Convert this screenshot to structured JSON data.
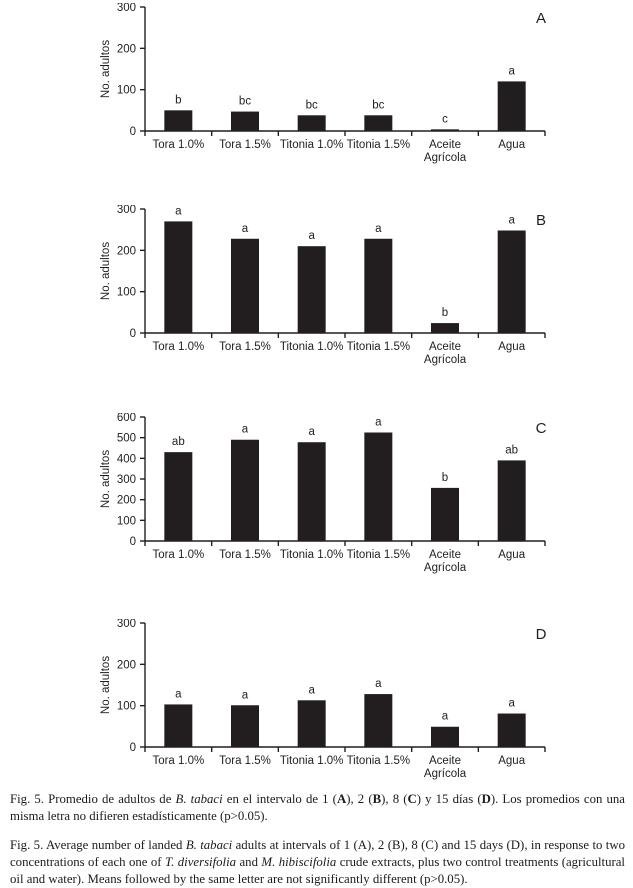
{
  "colors": {
    "ink": "#221e1f",
    "bar": "#221e1f",
    "background": "#ffffff"
  },
  "chart_data": [
    {
      "type": "bar",
      "panel": "A",
      "title": "",
      "xlabel": "",
      "ylabel": "No. adultos",
      "ylim": [
        0,
        300
      ],
      "yticks": [
        0,
        100,
        200,
        300
      ],
      "grid": false,
      "legend": "none",
      "categories": [
        "Tora 1.0%",
        "Tora 1.5%",
        "Titonia 1.0%",
        "Titonia 1.5%",
        "Aceite\nAgrícola",
        "Agua"
      ],
      "values": [
        50,
        47,
        38,
        38,
        4,
        120
      ],
      "sig_letters": [
        "b",
        "bc",
        "bc",
        "bc",
        "c",
        "a"
      ]
    },
    {
      "type": "bar",
      "panel": "B",
      "title": "",
      "xlabel": "",
      "ylabel": "No. adultos",
      "ylim": [
        0,
        300
      ],
      "yticks": [
        0,
        100,
        200,
        300
      ],
      "grid": false,
      "legend": "none",
      "categories": [
        "Tora 1.0%",
        "Tora 1.5%",
        "Titonia 1.0%",
        "Titonia 1.5%",
        "Aceite\nAgrícola",
        "Agua"
      ],
      "values": [
        270,
        228,
        210,
        228,
        24,
        248
      ],
      "sig_letters": [
        "a",
        "a",
        "a",
        "a",
        "b",
        "a"
      ]
    },
    {
      "type": "bar",
      "panel": "C",
      "title": "",
      "xlabel": "",
      "ylabel": "No. adultos",
      "ylim": [
        0,
        600
      ],
      "yticks": [
        0,
        100,
        200,
        300,
        400,
        500,
        600
      ],
      "grid": false,
      "legend": "none",
      "categories": [
        "Tora 1.0%",
        "Tora 1.5%",
        "Titonia 1.0%",
        "Titonia 1.5%",
        "Aceite\nAgrícola",
        "Agua"
      ],
      "values": [
        430,
        490,
        478,
        525,
        257,
        390
      ],
      "sig_letters": [
        "ab",
        "a",
        "a",
        "a",
        "b",
        "ab"
      ]
    },
    {
      "type": "bar",
      "panel": "D",
      "title": "",
      "xlabel": "",
      "ylabel": "No. adultos",
      "ylim": [
        0,
        300
      ],
      "yticks": [
        0,
        100,
        200,
        300
      ],
      "grid": false,
      "legend": "none",
      "categories": [
        "Tora 1.0%",
        "Tora 1.5%",
        "Titonia 1.0%",
        "Titonia 1.5%",
        "Aceite\nAgrícola",
        "Agua"
      ],
      "values": [
        103,
        101,
        113,
        128,
        49,
        81
      ],
      "sig_letters": [
        "a",
        "a",
        "a",
        "a",
        "a",
        "a"
      ]
    }
  ],
  "captions": {
    "spanish": {
      "segments": [
        {
          "t": "Fig. 5. Promedio de adultos de "
        },
        {
          "t": "B. tabaci",
          "i": 1
        },
        {
          "t": " en el intervalo de 1 ("
        },
        {
          "t": "A",
          "b": 1
        },
        {
          "t": "), 2 ("
        },
        {
          "t": "B",
          "b": 1
        },
        {
          "t": "), 8 ("
        },
        {
          "t": "C",
          "b": 1
        },
        {
          "t": ") y 15 días ("
        },
        {
          "t": "D",
          "b": 1
        },
        {
          "t": "). Los promedios con una misma letra no difieren estadísticamente (p>0.05)."
        }
      ]
    },
    "english": {
      "segments": [
        {
          "t": "Fig. 5. Average number of landed "
        },
        {
          "t": "B. tabaci",
          "i": 1
        },
        {
          "t": " adults at intervals of 1 (A), 2 (B), 8 (C) and 15 days (D), in response to two concentrations of each one of "
        },
        {
          "t": "T. diversifolia",
          "i": 1
        },
        {
          "t": " and "
        },
        {
          "t": "M. hibiscifolia",
          "i": 1
        },
        {
          "t": " crude extracts, plus two control treatments (agricultural oil and water). Means followed by the same letter are not significantly different (p>0.05)."
        }
      ]
    }
  }
}
